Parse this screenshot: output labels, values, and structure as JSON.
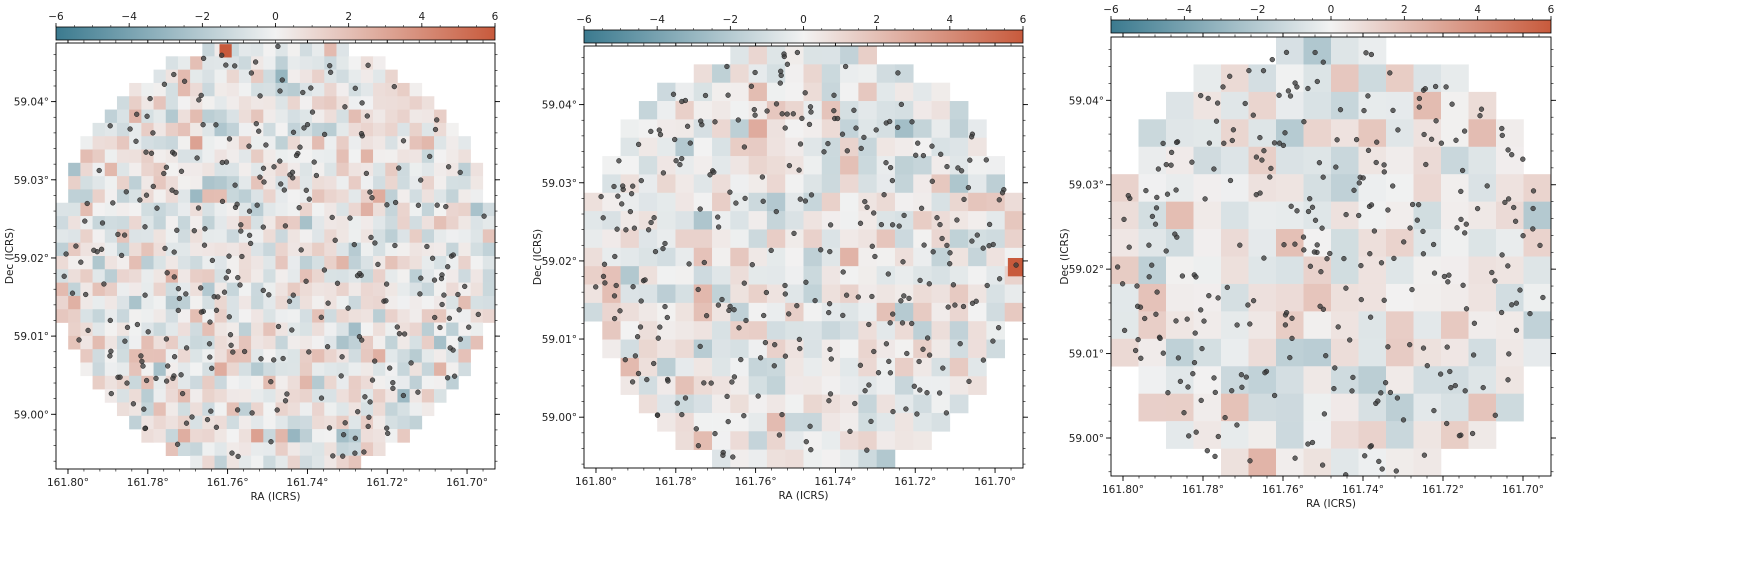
{
  "colors": {
    "cmap_low": "#3b7a8f",
    "cmap_mid": "#f2f2f2",
    "cmap_high": "#c85a3c",
    "point": "#3c3c3c",
    "frame": "#000000"
  },
  "chart_data": [
    {
      "type": "heatmap",
      "title": "",
      "xlabel": "RA (ICRS)",
      "ylabel": "Dec (ICRS)",
      "x_reversed": true,
      "xlim": [
        161.803,
        161.693
      ],
      "ylim": [
        58.993,
        59.0475
      ],
      "xticks": [
        161.8,
        161.78,
        161.76,
        161.74,
        161.72,
        161.7
      ],
      "xtick_labels": [
        "161.80°",
        "161.78°",
        "161.76°",
        "161.74°",
        "161.72°",
        "161.70°"
      ],
      "yticks": [
        59.0,
        59.01,
        59.02,
        59.03,
        59.04
      ],
      "ytick_labels": [
        "59.00°",
        "59.01°",
        "59.02°",
        "59.03°",
        "59.04°"
      ],
      "grid": false,
      "colorbar": {
        "position": "top",
        "range": [
          -6,
          6
        ],
        "ticks": [
          -6,
          -4,
          -2,
          0,
          2,
          4,
          6
        ],
        "tick_labels": [
          "−6",
          "−4",
          "−2",
          "0",
          "2",
          "4",
          "6"
        ]
      },
      "pixel_grid": {
        "cols": 36,
        "rows": 32,
        "circle_center": [
          161.748,
          59.02
        ],
        "seed": 11,
        "noise_amp": 2.2
      },
      "highlights": [
        {
          "ra": 161.7605,
          "dec": 59.0465,
          "value": 6.0
        }
      ],
      "sources": {
        "count": 300,
        "seed": 101
      }
    },
    {
      "type": "heatmap",
      "title": "",
      "xlabel": "RA (ICRS)",
      "ylabel": "Dec (ICRS)",
      "x_reversed": true,
      "xlim": [
        161.803,
        161.693
      ],
      "ylim": [
        58.9935,
        59.0475
      ],
      "xticks": [
        161.8,
        161.78,
        161.76,
        161.74,
        161.72,
        161.7
      ],
      "xtick_labels": [
        "161.80°",
        "161.78°",
        "161.76°",
        "161.74°",
        "161.72°",
        "161.70°"
      ],
      "yticks": [
        59.0,
        59.01,
        59.02,
        59.03,
        59.04
      ],
      "ytick_labels": [
        "59.00°",
        "59.01°",
        "59.02°",
        "59.03°",
        "59.04°"
      ],
      "grid": false,
      "colorbar": {
        "position": "top",
        "range": [
          -6,
          6
        ],
        "ticks": [
          -6,
          -4,
          -2,
          0,
          2,
          4,
          6
        ],
        "tick_labels": [
          "−6",
          "−4",
          "−2",
          "0",
          "2",
          "4",
          "6"
        ]
      },
      "pixel_grid": {
        "cols": 24,
        "rows": 23,
        "circle_center": [
          161.748,
          59.02
        ],
        "seed": 23,
        "noise_amp": 2.0
      },
      "highlights": [
        {
          "ra": 161.6945,
          "dec": 59.0192,
          "value": 6.0
        }
      ],
      "sources": {
        "count": 300,
        "seed": 202
      }
    },
    {
      "type": "heatmap",
      "title": "",
      "xlabel": "RA (ICRS)",
      "ylabel": "Dec (ICRS)",
      "x_reversed": true,
      "xlim": [
        161.803,
        161.693
      ],
      "ylim": [
        58.9955,
        59.0475
      ],
      "xticks": [
        161.8,
        161.78,
        161.76,
        161.74,
        161.72,
        161.7
      ],
      "xtick_labels": [
        "161.80°",
        "161.78°",
        "161.76°",
        "161.74°",
        "161.72°",
        "161.70°"
      ],
      "yticks": [
        59.0,
        59.01,
        59.02,
        59.03,
        59.04
      ],
      "ytick_labels": [
        "59.00°",
        "59.01°",
        "59.02°",
        "59.03°",
        "59.04°"
      ],
      "grid": false,
      "colorbar": {
        "position": "top",
        "range": [
          -6,
          6
        ],
        "ticks": [
          -6,
          -4,
          -2,
          0,
          2,
          4,
          6
        ],
        "tick_labels": [
          "−6",
          "−4",
          "−2",
          "0",
          "2",
          "4",
          "6"
        ]
      },
      "pixel_grid": {
        "cols": 16,
        "rows": 16,
        "circle_center": [
          161.748,
          59.02
        ],
        "seed": 37,
        "noise_amp": 1.9
      },
      "highlights": [],
      "sources": {
        "count": 300,
        "seed": 303
      }
    }
  ]
}
